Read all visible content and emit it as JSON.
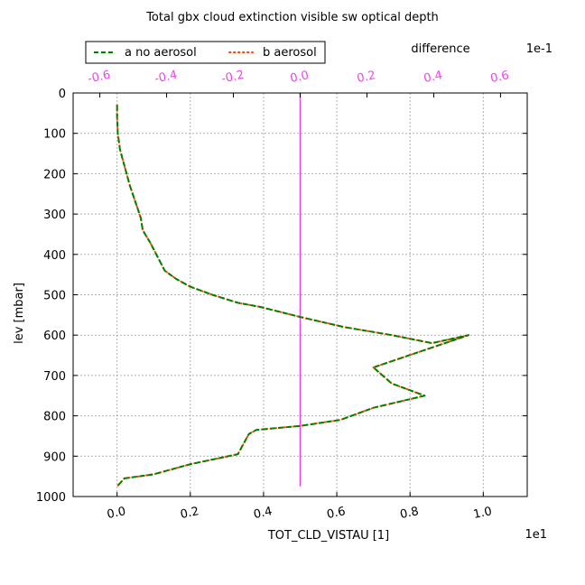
{
  "chart_data": {
    "type": "line",
    "title": "Total gbx cloud extinction visible sw optical depth",
    "xlabel": "TOT_CLD_VISTAU [1]",
    "ylabel": "lev [mbar]",
    "x_multiplier_label": "1e1",
    "top_axis_label": "difference",
    "top_multiplier_label": "1e-1",
    "xlim": [
      -0.12,
      1.12
    ],
    "ylim": [
      1000,
      0
    ],
    "top_xlim": [
      -0.68,
      0.68
    ],
    "x_ticks": [
      0.0,
      0.2,
      0.4,
      0.6,
      0.8,
      1.0
    ],
    "x_tick_labels": [
      "0.0",
      "0.2",
      "0.4",
      "0.6",
      "0.8",
      "1.0"
    ],
    "y_ticks": [
      0,
      100,
      200,
      300,
      400,
      500,
      600,
      700,
      800,
      900,
      1000
    ],
    "y_tick_labels": [
      "0",
      "100",
      "200",
      "300",
      "400",
      "500",
      "600",
      "700",
      "800",
      "900",
      "1000"
    ],
    "top_ticks": [
      -0.6,
      -0.4,
      -0.2,
      0.0,
      0.2,
      0.4,
      0.6
    ],
    "top_tick_labels": [
      "-0.6",
      "-0.4",
      "-0.2",
      "0.0",
      "0.2",
      "0.4",
      "0.6"
    ],
    "grid": true,
    "legend_position": "top-left",
    "colors": {
      "series_a": "#008000",
      "series_b": "#ff4500",
      "difference": "#ee44ee",
      "grid": "#b0b0b0",
      "axis": "#000000"
    },
    "series": [
      {
        "name": "a no aerosol",
        "style": "dashed",
        "x": [
          0.0,
          0.0,
          0.002,
          0.008,
          0.02,
          0.035,
          0.05,
          0.065,
          0.07,
          0.09,
          0.13,
          0.16,
          0.2,
          0.26,
          0.33,
          0.39,
          0.5,
          0.62,
          0.75,
          0.86,
          0.96,
          0.83,
          0.7,
          0.75,
          0.84,
          0.7,
          0.61,
          0.5,
          0.38,
          0.37,
          0.36,
          0.33,
          0.2,
          0.1,
          0.02,
          0.01,
          0.0
        ],
        "y": [
          30,
          60,
          100,
          140,
          180,
          230,
          270,
          310,
          340,
          370,
          440,
          460,
          480,
          500,
          520,
          530,
          555,
          580,
          600,
          620,
          600,
          640,
          680,
          720,
          750,
          780,
          810,
          825,
          835,
          840,
          845,
          895,
          920,
          945,
          955,
          965,
          975
        ]
      },
      {
        "name": "b aerosol",
        "style": "dotted",
        "x": [
          0.0,
          0.0,
          0.002,
          0.008,
          0.02,
          0.035,
          0.05,
          0.065,
          0.07,
          0.09,
          0.13,
          0.16,
          0.2,
          0.26,
          0.33,
          0.39,
          0.5,
          0.62,
          0.75,
          0.86,
          0.96,
          0.83,
          0.7,
          0.75,
          0.84,
          0.7,
          0.61,
          0.5,
          0.38,
          0.37,
          0.36,
          0.33,
          0.2,
          0.1,
          0.02,
          0.01,
          0.0
        ],
        "y": [
          30,
          60,
          100,
          140,
          180,
          230,
          270,
          310,
          340,
          370,
          440,
          460,
          480,
          500,
          520,
          530,
          555,
          580,
          600,
          620,
          600,
          640,
          680,
          720,
          750,
          780,
          810,
          825,
          835,
          840,
          845,
          895,
          920,
          945,
          955,
          965,
          975
        ]
      },
      {
        "name": "difference",
        "style": "solid",
        "axis": "top",
        "x": [
          0.0,
          0.0
        ],
        "y": [
          0,
          975
        ]
      }
    ]
  }
}
